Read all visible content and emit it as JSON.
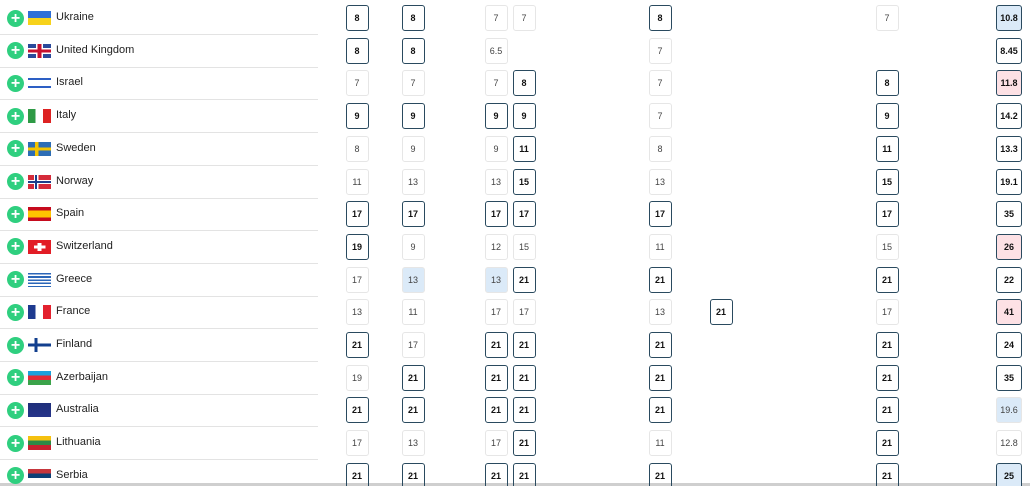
{
  "rows": [
    {
      "country": "Ukraine",
      "odds": [
        8,
        8,
        7,
        7,
        8,
        null,
        7,
        10.8
      ],
      "styles": [
        "best",
        "best",
        "plain",
        "plain",
        "best",
        null,
        "plain",
        "rise-best"
      ]
    },
    {
      "country": "United Kingdom",
      "odds": [
        8,
        8,
        6.5,
        null,
        7,
        null,
        null,
        8.45
      ],
      "styles": [
        "best",
        "best",
        "plain",
        null,
        "plain",
        null,
        null,
        "best"
      ]
    },
    {
      "country": "Israel",
      "odds": [
        7,
        7,
        7,
        8,
        7,
        null,
        8,
        11.8
      ],
      "styles": [
        "plain",
        "plain",
        "plain",
        "best",
        "plain",
        null,
        "best",
        "drop-best"
      ]
    },
    {
      "country": "Italy",
      "odds": [
        9,
        9,
        9,
        9,
        7,
        null,
        9,
        14.2
      ],
      "styles": [
        "best",
        "best",
        "best",
        "best",
        "plain",
        null,
        "best",
        "best"
      ]
    },
    {
      "country": "Sweden",
      "odds": [
        8,
        9,
        9,
        11,
        8,
        null,
        11,
        13.3
      ],
      "styles": [
        "plain",
        "plain",
        "plain",
        "best",
        "plain",
        null,
        "best",
        "best"
      ]
    },
    {
      "country": "Norway",
      "odds": [
        11,
        13,
        13,
        15,
        13,
        null,
        15,
        19.1
      ],
      "styles": [
        "plain",
        "plain",
        "plain",
        "best",
        "plain",
        null,
        "best",
        "best"
      ]
    },
    {
      "country": "Spain",
      "odds": [
        17,
        17,
        17,
        17,
        17,
        null,
        17,
        35
      ],
      "styles": [
        "best",
        "best",
        "best",
        "best",
        "best",
        null,
        "best",
        "best"
      ]
    },
    {
      "country": "Switzerland",
      "odds": [
        19,
        9,
        12,
        15,
        11,
        null,
        15,
        26
      ],
      "styles": [
        "best",
        "plain",
        "plain",
        "plain",
        "plain",
        null,
        "plain",
        "drop-best"
      ]
    },
    {
      "country": "Greece",
      "odds": [
        17,
        13,
        13,
        21,
        21,
        null,
        21,
        22
      ],
      "styles": [
        "plain",
        "rise",
        "rise",
        "best",
        "best",
        null,
        "best",
        "best"
      ]
    },
    {
      "country": "France",
      "odds": [
        13,
        11,
        17,
        17,
        13,
        21,
        17,
        41
      ],
      "styles": [
        "plain",
        "plain",
        "plain",
        "plain",
        "plain",
        "best",
        "plain",
        "drop-best"
      ]
    },
    {
      "country": "Finland",
      "odds": [
        21,
        17,
        21,
        21,
        21,
        null,
        21,
        24
      ],
      "styles": [
        "best",
        "plain",
        "best",
        "best",
        "best",
        null,
        "best",
        "best"
      ]
    },
    {
      "country": "Azerbaijan",
      "odds": [
        19,
        21,
        21,
        21,
        21,
        null,
        21,
        35
      ],
      "styles": [
        "plain",
        "best",
        "best",
        "best",
        "best",
        null,
        "best",
        "best"
      ]
    },
    {
      "country": "Australia",
      "odds": [
        21,
        21,
        21,
        21,
        21,
        null,
        21,
        19.6
      ],
      "styles": [
        "best",
        "best",
        "best",
        "best",
        "best",
        null,
        "best",
        "rise"
      ]
    },
    {
      "country": "Lithuania",
      "odds": [
        17,
        13,
        17,
        21,
        11,
        null,
        21,
        12.8
      ],
      "styles": [
        "plain",
        "plain",
        "plain",
        "best",
        "plain",
        null,
        "best",
        "plain"
      ]
    },
    {
      "country": "Serbia",
      "odds": [
        21,
        21,
        21,
        21,
        21,
        null,
        21,
        25
      ],
      "styles": [
        "best",
        "best",
        "best",
        "best",
        "best",
        null,
        "best",
        "rise-best"
      ]
    }
  ]
}
